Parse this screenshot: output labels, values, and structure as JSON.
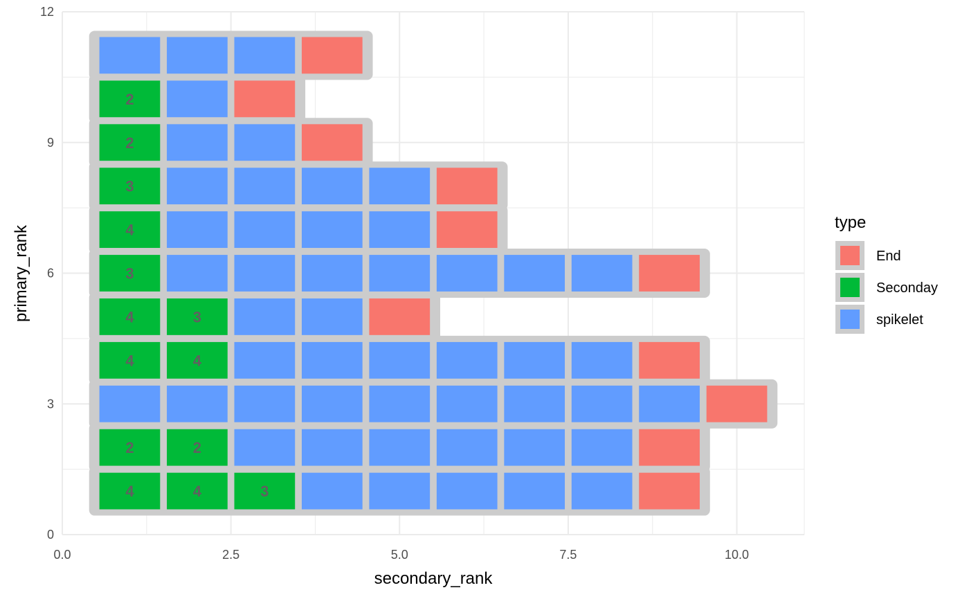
{
  "chart_data": {
    "type": "tile",
    "title": "",
    "xlabel": "secondary_rank",
    "ylabel": "primary_rank",
    "xlim": [
      0,
      11
    ],
    "ylim": [
      0,
      12
    ],
    "x_ticks": [
      0,
      2.5,
      5,
      7.5,
      10
    ],
    "x_tick_labels": [
      "0.0",
      "2.5",
      "5.0",
      "7.5",
      "10.0"
    ],
    "y_ticks": [
      0,
      3,
      6,
      9,
      12
    ],
    "y_tick_labels": [
      "0",
      "3",
      "6",
      "9",
      "12"
    ],
    "grid": true,
    "legend": {
      "title": "type",
      "position": "right",
      "entries": [
        {
          "key": "End",
          "label": "End",
          "color": "#F8766D"
        },
        {
          "key": "Seconday",
          "label": "Seconday",
          "color": "#00BA38"
        },
        {
          "key": "spikelet",
          "label": "spikelet",
          "color": "#619CFF"
        }
      ]
    },
    "border_color": "#cccccc",
    "label_color": "#606060",
    "rows": [
      {
        "primary_rank": 1,
        "cells": [
          "Seconday:4",
          "Seconday:4",
          "Seconday:3",
          "spikelet",
          "spikelet",
          "spikelet",
          "spikelet",
          "spikelet",
          "End"
        ]
      },
      {
        "primary_rank": 2,
        "cells": [
          "Seconday:2",
          "Seconday:2",
          "spikelet",
          "spikelet",
          "spikelet",
          "spikelet",
          "spikelet",
          "spikelet",
          "End"
        ]
      },
      {
        "primary_rank": 3,
        "cells": [
          "spikelet",
          "spikelet",
          "spikelet",
          "spikelet",
          "spikelet",
          "spikelet",
          "spikelet",
          "spikelet",
          "spikelet",
          "End"
        ]
      },
      {
        "primary_rank": 4,
        "cells": [
          "Seconday:4",
          "Seconday:4",
          "spikelet",
          "spikelet",
          "spikelet",
          "spikelet",
          "spikelet",
          "spikelet",
          "End"
        ]
      },
      {
        "primary_rank": 5,
        "cells": [
          "Seconday:4",
          "Seconday:3",
          "spikelet",
          "spikelet",
          "End"
        ]
      },
      {
        "primary_rank": 6,
        "cells": [
          "Seconday:3",
          "spikelet",
          "spikelet",
          "spikelet",
          "spikelet",
          "spikelet",
          "spikelet",
          "spikelet",
          "End"
        ]
      },
      {
        "primary_rank": 7,
        "cells": [
          "Seconday:4",
          "spikelet",
          "spikelet",
          "spikelet",
          "spikelet",
          "End"
        ]
      },
      {
        "primary_rank": 8,
        "cells": [
          "Seconday:3",
          "spikelet",
          "spikelet",
          "spikelet",
          "spikelet",
          "End"
        ]
      },
      {
        "primary_rank": 9,
        "cells": [
          "Seconday:2",
          "spikelet",
          "spikelet",
          "End"
        ]
      },
      {
        "primary_rank": 10,
        "cells": [
          "Seconday:2",
          "spikelet",
          "End"
        ]
      },
      {
        "primary_rank": 11,
        "cells": [
          "spikelet",
          "spikelet",
          "spikelet",
          "End"
        ]
      }
    ]
  }
}
